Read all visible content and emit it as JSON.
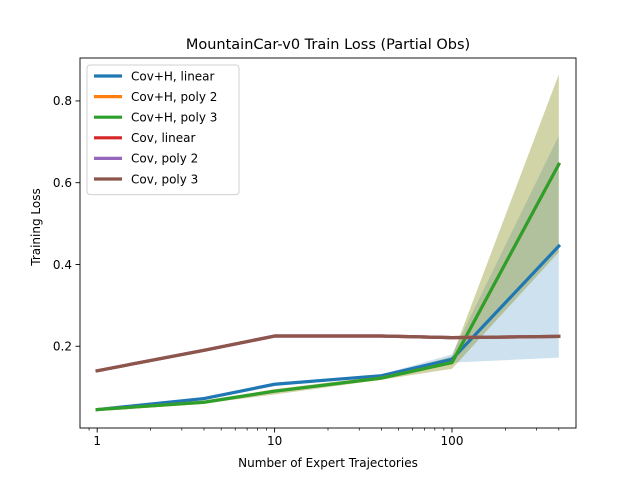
{
  "chart_data": {
    "type": "line",
    "title": "MountainCar-v0 Train Loss (Partial Obs)",
    "xlabel": "Number of Expert Trajectories",
    "ylabel": "Training Loss",
    "xscale": "log",
    "xlim": [
      0.8,
      500
    ],
    "ylim": [
      0.0,
      0.905
    ],
    "xticks": [
      {
        "value": 1,
        "label": "1"
      },
      {
        "value": 10,
        "label": "10"
      },
      {
        "value": 100,
        "label": "100"
      }
    ],
    "yticks": [
      {
        "value": 0.2,
        "label": "0.2"
      },
      {
        "value": 0.4,
        "label": "0.4"
      },
      {
        "value": 0.6,
        "label": "0.6"
      },
      {
        "value": 0.8,
        "label": "0.8"
      }
    ],
    "x": [
      1,
      4,
      10,
      40,
      100,
      400
    ],
    "grid": false,
    "legend_position": "upper-left",
    "series": [
      {
        "name": "Cov+H, linear",
        "color": "#1f77b4",
        "values": [
          0.045,
          0.072,
          0.107,
          0.128,
          0.168,
          0.445
        ],
        "lower": [
          0.043,
          0.068,
          0.103,
          0.125,
          0.16,
          0.172
        ],
        "upper": [
          0.047,
          0.076,
          0.111,
          0.131,
          0.18,
          0.715
        ]
      },
      {
        "name": "Cov+H, poly 2",
        "color": "#ff7f0e",
        "values": [
          0.045,
          0.063,
          0.09,
          0.122,
          0.16,
          0.645
        ],
        "lower": [
          0.043,
          0.06,
          0.082,
          0.118,
          0.145,
          0.43
        ],
        "upper": [
          0.047,
          0.066,
          0.095,
          0.127,
          0.175,
          0.865
        ]
      },
      {
        "name": "Cov+H, poly 3",
        "color": "#2ca02c",
        "values": [
          0.045,
          0.063,
          0.09,
          0.122,
          0.16,
          0.645
        ],
        "lower": [
          0.043,
          0.06,
          0.082,
          0.118,
          0.145,
          0.43
        ],
        "upper": [
          0.047,
          0.066,
          0.095,
          0.127,
          0.175,
          0.865
        ]
      },
      {
        "name": "Cov, linear",
        "color": "#d62728",
        "values": [
          0.14,
          0.19,
          0.225,
          0.225,
          0.221,
          0.224
        ]
      },
      {
        "name": "Cov, poly 2",
        "color": "#9467bd",
        "values": [
          0.14,
          0.19,
          0.225,
          0.225,
          0.221,
          0.224
        ]
      },
      {
        "name": "Cov, poly 3",
        "color": "#8c564b",
        "values": [
          0.14,
          0.19,
          0.225,
          0.225,
          0.221,
          0.224
        ]
      }
    ]
  }
}
